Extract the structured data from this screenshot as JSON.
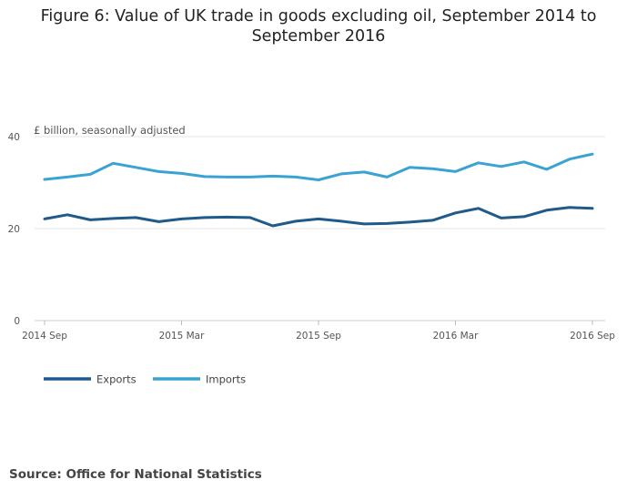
{
  "chart_data": {
    "type": "line",
    "title": "Figure 6: Value of UK trade in goods excluding oil, September 2014 to September 2016",
    "unit_label": "£ billion, seasonally adjusted",
    "xlabel": "",
    "ylabel": "£ billion, seasonally adjusted",
    "ylim": [
      0,
      40
    ],
    "yticks": [
      0,
      20,
      40
    ],
    "x": [
      "2014 Sep",
      "2014 Oct",
      "2014 Nov",
      "2014 Dec",
      "2015 Jan",
      "2015 Feb",
      "2015 Mar",
      "2015 Apr",
      "2015 May",
      "2015 Jun",
      "2015 Jul",
      "2015 Aug",
      "2015 Sep",
      "2015 Oct",
      "2015 Nov",
      "2015 Dec",
      "2016 Jan",
      "2016 Feb",
      "2016 Mar",
      "2016 Apr",
      "2016 May",
      "2016 Jun",
      "2016 Jul",
      "2016 Aug",
      "2016 Sep"
    ],
    "xtick_labels": [
      {
        "index": 0,
        "label": "2014 Sep"
      },
      {
        "index": 6,
        "label": "2015 Mar"
      },
      {
        "index": 12,
        "label": "2015 Sep"
      },
      {
        "index": 18,
        "label": "2016 Mar"
      },
      {
        "index": 24,
        "label": "2016 Sep"
      }
    ],
    "grid": true,
    "legend_position": "bottom-left",
    "series": [
      {
        "name": "Exports",
        "color": "#1f5a8a",
        "values": [
          22.1,
          23.0,
          21.9,
          22.2,
          22.4,
          21.5,
          22.1,
          22.4,
          22.5,
          22.4,
          20.6,
          21.6,
          22.1,
          21.6,
          21.0,
          21.1,
          21.4,
          21.8,
          23.4,
          24.4,
          22.3,
          22.6,
          24.0,
          24.6,
          24.4
        ]
      },
      {
        "name": "Imports",
        "color": "#3aa3d3",
        "values": [
          30.7,
          31.2,
          31.8,
          34.2,
          33.3,
          32.4,
          32.0,
          31.3,
          31.2,
          31.2,
          31.4,
          31.2,
          30.6,
          31.9,
          32.3,
          31.2,
          33.3,
          33.0,
          32.4,
          34.3,
          33.5,
          34.5,
          32.9,
          35.1,
          36.2
        ]
      }
    ]
  },
  "source": "Source: Office for National Statistics"
}
